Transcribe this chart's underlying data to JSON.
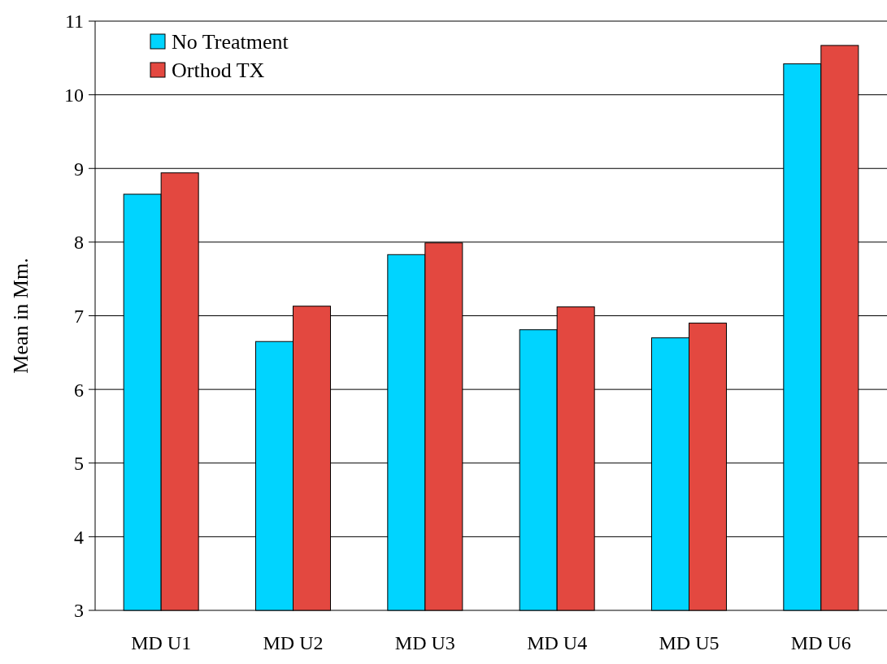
{
  "chart_data": {
    "type": "bar",
    "ylabel": "Mean in Mm.",
    "categories": [
      "MD U1",
      "MD U2",
      "MD U3",
      "MD U4",
      "MD U5",
      "MD U6"
    ],
    "series": [
      {
        "name": "No Treatment",
        "color": "#00d4ff",
        "values": [
          8.65,
          6.65,
          7.83,
          6.81,
          6.7,
          10.42
        ]
      },
      {
        "name": "Orthod TX",
        "color": "#e34840",
        "values": [
          8.94,
          7.13,
          7.99,
          7.12,
          6.9,
          10.67
        ]
      }
    ],
    "ylim": [
      3,
      11
    ],
    "yticks": [
      3,
      4,
      5,
      6,
      7,
      8,
      9,
      10,
      11
    ],
    "grid": "y",
    "legend": "top left"
  }
}
